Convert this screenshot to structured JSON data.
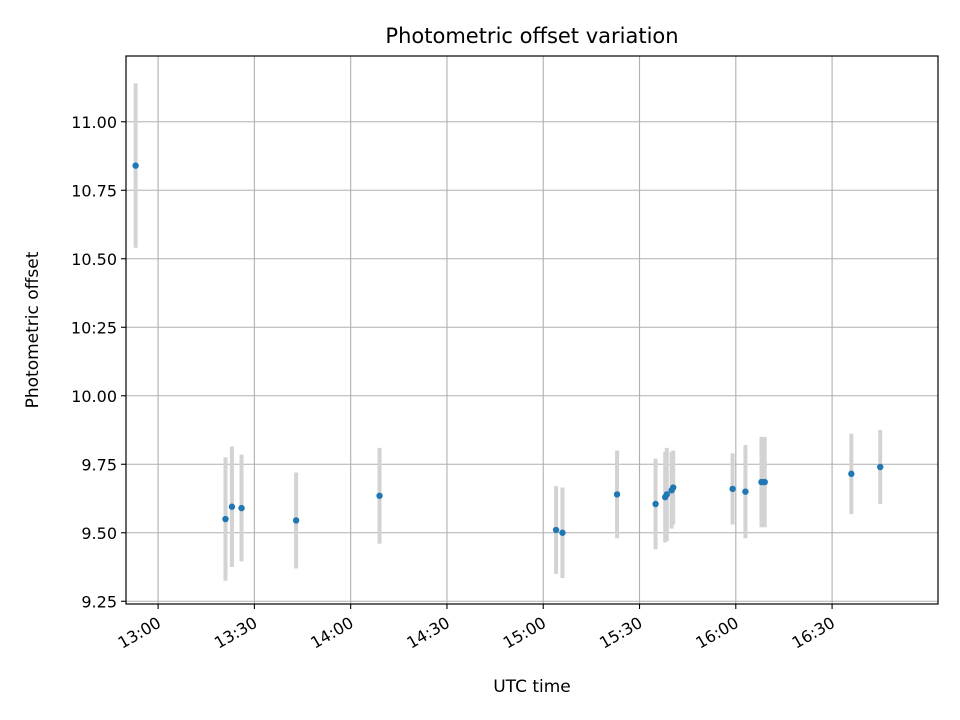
{
  "chart_data": {
    "type": "scatter",
    "title": "Photometric offset variation",
    "xlabel": "UTC time",
    "ylabel": "Photometric offset",
    "xlim": [
      "12:50",
      "17:03"
    ],
    "ylim": [
      9.24,
      11.24
    ],
    "x_ticks": [
      "13:00",
      "13:30",
      "14:00",
      "14:30",
      "15:00",
      "15:30",
      "16:00",
      "16:30"
    ],
    "y_ticks": [
      "9.25",
      "9.50",
      "9.75",
      "10.00",
      "10:25",
      "10.50",
      "10.75",
      "11.00"
    ],
    "grid": true,
    "legend": "none",
    "colors": {
      "points": "#1f77b4",
      "error_bars": "#d3d3d3",
      "grid": "#b0b0b0"
    },
    "points": [
      {
        "x": "12:53",
        "y": 10.84,
        "err": 0.3
      },
      {
        "x": "13:21",
        "y": 9.55,
        "err": 0.225
      },
      {
        "x": "13:23",
        "y": 9.595,
        "err": 0.22
      },
      {
        "x": "13:26",
        "y": 9.59,
        "err": 0.195
      },
      {
        "x": "13:43",
        "y": 9.545,
        "err": 0.175
      },
      {
        "x": "14:09",
        "y": 9.635,
        "err": 0.175
      },
      {
        "x": "15:04",
        "y": 9.51,
        "err": 0.16
      },
      {
        "x": "15:06",
        "y": 9.5,
        "err": 0.165
      },
      {
        "x": "15:23",
        "y": 9.64,
        "err": 0.16
      },
      {
        "x": "15:35",
        "y": 9.605,
        "err": 0.165
      },
      {
        "x": "15:38",
        "y": 9.63,
        "err": 0.165
      },
      {
        "x": "15:38.5",
        "y": 9.64,
        "err": 0.17
      },
      {
        "x": "15:40",
        "y": 9.655,
        "err": 0.14
      },
      {
        "x": "15:40.5",
        "y": 9.665,
        "err": 0.135
      },
      {
        "x": "15:59",
        "y": 9.66,
        "err": 0.13
      },
      {
        "x": "16:03",
        "y": 9.65,
        "err": 0.17
      },
      {
        "x": "16:08",
        "y": 9.685,
        "err": 0.165
      },
      {
        "x": "16:09",
        "y": 9.685,
        "err": 0.165
      },
      {
        "x": "16:36",
        "y": 9.715,
        "err": 0.147
      },
      {
        "x": "16:45",
        "y": 9.74,
        "err": 0.135
      }
    ]
  }
}
